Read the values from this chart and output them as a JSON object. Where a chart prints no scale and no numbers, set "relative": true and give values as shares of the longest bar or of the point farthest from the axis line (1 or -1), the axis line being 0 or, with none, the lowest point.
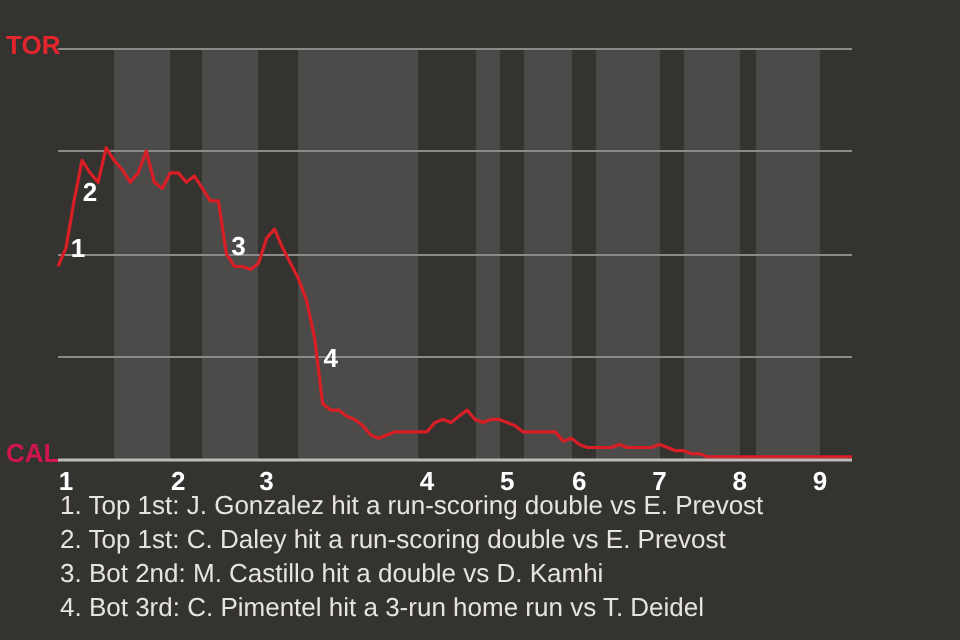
{
  "chart_data": {
    "type": "line",
    "relative": true,
    "categories": [
      null,
      "1",
      null,
      null,
      null,
      null,
      null,
      null,
      null,
      null,
      null,
      null,
      null,
      null,
      null,
      "2",
      null,
      null,
      null,
      null,
      null,
      null,
      null,
      null,
      null,
      null,
      "3",
      null,
      null,
      null,
      null,
      null,
      null,
      null,
      null,
      null,
      null,
      null,
      null,
      null,
      null,
      null,
      null,
      null,
      null,
      null,
      "4",
      null,
      null,
      null,
      null,
      null,
      null,
      null,
      null,
      null,
      "5",
      null,
      null,
      null,
      null,
      null,
      null,
      null,
      null,
      "6",
      null,
      null,
      null,
      null,
      null,
      null,
      null,
      null,
      null,
      "7",
      null,
      null,
      null,
      null,
      null,
      null,
      null,
      null,
      null,
      "8",
      null,
      null,
      null,
      null,
      null,
      null,
      null,
      null,
      null,
      "9",
      null,
      null,
      null,
      null
    ],
    "series": [
      {
        "color": "#d81f26",
        "values": [
          0.62,
          0.68,
          0.83,
          0.96,
          0.92,
          0.89,
          1,
          0.96,
          0.93,
          0.89,
          0.92,
          0.99,
          0.89,
          0.87,
          0.92,
          0.92,
          0.89,
          0.91,
          0.87,
          0.83,
          0.83,
          0.66,
          0.62,
          0.62,
          0.61,
          0.63,
          0.71,
          0.74,
          0.68,
          0.63,
          0.58,
          0.51,
          0.39,
          0.18,
          0.16,
          0.16,
          0.14,
          0.13,
          0.11,
          0.08,
          0.07,
          0.08,
          0.09,
          0.09,
          0.09,
          0.09,
          0.09,
          0.12,
          0.13,
          0.12,
          0.14,
          0.16,
          0.13,
          0.12,
          0.13,
          0.13,
          0.12,
          0.11,
          0.09,
          0.09,
          0.09,
          0.09,
          0.09,
          0.06,
          0.07,
          0.05,
          0.04,
          0.04,
          0.04,
          0.04,
          0.05,
          0.04,
          0.04,
          0.04,
          0.04,
          0.05,
          0.04,
          0.03,
          0.03,
          0.02,
          0.02,
          0.01,
          0.01,
          0.01,
          0.01,
          0.01,
          0.01,
          0.01,
          0.01,
          0.01,
          0.01,
          0.01,
          0.01,
          0.01,
          0.01,
          0.01,
          0.01,
          0.01,
          0.01,
          0.01
        ]
      }
    ],
    "line_style": "solid",
    "ref_lines": [
      {
        "axis": "y",
        "value": 0.33,
        "color": "#8c8a88"
      },
      {
        "axis": "y",
        "value": 0.66,
        "color": "#8c8a88"
      },
      {
        "axis": "y",
        "value": 0.99,
        "color": "#8c8a88"
      },
      {
        "axis": "y",
        "value": 1.32,
        "color": "#8c8a88"
      }
    ],
    "annotations": [
      "1",
      "2",
      "3",
      "4",
      "TOR",
      "CAL",
      "1. Top 1st: J. Gonzalez hit a run-scoring double vs E. Prevost",
      "2. Top 1st: C. Daley hit a run-scoring double vs E. Prevost",
      "3. Bot 2nd: M. Castillo hit a double vs D. Kamhi",
      "4. Bot 3rd: C. Pimentel hit a 3-run home run vs T. Deidel"
    ]
  }
}
